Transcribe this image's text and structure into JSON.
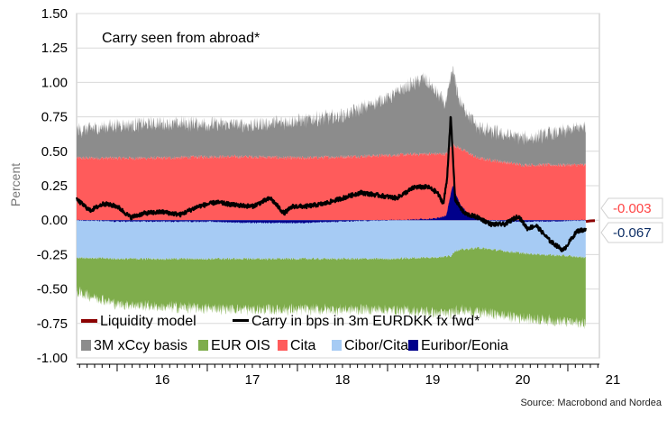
{
  "chart_data": {
    "type": "area",
    "title": "",
    "annotation": "Carry seen from abroad*",
    "xlabel": "",
    "ylabel": "Percent",
    "ylim": [
      -1.0,
      1.5
    ],
    "yticks": [
      "1.50",
      "1.25",
      "1.00",
      "0.75",
      "0.50",
      "0.25",
      "0.00",
      "-0.25",
      "-0.50",
      "-0.75",
      "-1.00"
    ],
    "xlim": [
      2015.55,
      2021.35
    ],
    "xticks": [
      "16",
      "17",
      "18",
      "19",
      "20",
      "21"
    ],
    "grid": true,
    "legend_placement": "bottom-left",
    "source": "Source: Macrobond and Nordea",
    "series": [
      {
        "name": "Liquidity model",
        "kind": "line",
        "color": "#8b0000",
        "x": [
          2021.2,
          2021.25,
          2021.3
        ],
        "y": [
          -0.01,
          -0.005,
          -0.003
        ]
      },
      {
        "name": "Carry in bps in 3m EURDKK fx fwd*",
        "kind": "line",
        "color": "#000000",
        "x": [
          2015.55,
          2015.7,
          2015.85,
          2016.0,
          2016.15,
          2016.3,
          2016.5,
          2016.7,
          2016.9,
          2017.1,
          2017.3,
          2017.5,
          2017.7,
          2017.85,
          2017.95,
          2018.1,
          2018.3,
          2018.5,
          2018.7,
          2018.9,
          2019.1,
          2019.3,
          2019.45,
          2019.55,
          2019.62,
          2019.66,
          2019.7,
          2019.75,
          2019.85,
          2020.0,
          2020.15,
          2020.3,
          2020.45,
          2020.55,
          2020.65,
          2020.8,
          2020.95,
          2021.1,
          2021.2
        ],
        "y": [
          0.15,
          0.07,
          0.12,
          0.1,
          0.02,
          0.05,
          0.06,
          0.04,
          0.1,
          0.13,
          0.11,
          0.1,
          0.16,
          0.05,
          0.1,
          0.1,
          0.12,
          0.16,
          0.2,
          0.18,
          0.16,
          0.24,
          0.24,
          0.2,
          0.12,
          0.3,
          0.76,
          0.15,
          0.05,
          0.02,
          -0.03,
          -0.03,
          0.03,
          -0.06,
          -0.04,
          -0.15,
          -0.22,
          -0.08,
          -0.067
        ]
      },
      {
        "name": "3M xCcy basis",
        "kind": "area",
        "color": "#8c8c8c",
        "x": [
          2015.55,
          2016.0,
          2016.5,
          2017.0,
          2017.5,
          2018.0,
          2018.5,
          2019.0,
          2019.4,
          2019.65,
          2019.72,
          2019.8,
          2020.0,
          2020.3,
          2020.6,
          2020.9,
          2021.2
        ],
        "y": [
          0.2,
          0.24,
          0.25,
          0.24,
          0.23,
          0.27,
          0.3,
          0.42,
          0.55,
          0.36,
          0.55,
          0.34,
          0.22,
          0.2,
          0.2,
          0.24,
          0.28
        ]
      },
      {
        "name": "EUR OIS",
        "kind": "area",
        "color": "#7fad4c",
        "x": [
          2015.55,
          2016.0,
          2016.5,
          2017.0,
          2017.5,
          2018.0,
          2018.5,
          2019.0,
          2019.5,
          2019.7,
          2020.0,
          2020.5,
          2021.0,
          2021.2
        ],
        "y": [
          -0.25,
          -0.33,
          -0.35,
          -0.36,
          -0.37,
          -0.37,
          -0.37,
          -0.37,
          -0.4,
          -0.42,
          -0.47,
          -0.47,
          -0.48,
          -0.48
        ]
      },
      {
        "name": "Cita",
        "kind": "area",
        "color": "#ff5b5b",
        "x": [
          2015.55,
          2016.0,
          2016.5,
          2017.0,
          2017.5,
          2018.0,
          2018.5,
          2019.0,
          2019.4,
          2019.65,
          2019.72,
          2020.0,
          2020.5,
          2021.0,
          2021.2
        ],
        "y": [
          0.45,
          0.45,
          0.45,
          0.46,
          0.46,
          0.45,
          0.46,
          0.47,
          0.48,
          0.48,
          0.55,
          0.45,
          0.4,
          0.4,
          0.4
        ]
      },
      {
        "name": "Cibor/Cita",
        "kind": "area",
        "color": "#a6cbf4",
        "x": [
          2015.55,
          2016.0,
          2016.5,
          2017.0,
          2017.5,
          2018.0,
          2018.5,
          2019.0,
          2019.5,
          2019.7,
          2019.75,
          2020.0,
          2020.5,
          2021.0,
          2021.2
        ],
        "y": [
          -0.27,
          -0.28,
          -0.28,
          -0.28,
          -0.28,
          -0.28,
          -0.28,
          -0.28,
          -0.27,
          -0.26,
          -0.22,
          -0.2,
          -0.24,
          -0.26,
          -0.27
        ]
      },
      {
        "name": "Euribor/Eonia",
        "kind": "area",
        "color": "#00008b",
        "x": [
          2015.55,
          2016.0,
          2016.5,
          2017.0,
          2017.5,
          2018.0,
          2018.5,
          2019.0,
          2019.5,
          2019.65,
          2019.72,
          2019.8,
          2019.9,
          2020.1,
          2020.4,
          2020.8,
          2021.2
        ],
        "y": [
          0.0,
          -0.01,
          -0.01,
          -0.01,
          -0.02,
          -0.02,
          -0.01,
          0.0,
          0.01,
          0.03,
          0.25,
          0.12,
          0.04,
          0.0,
          -0.01,
          -0.01,
          0.0
        ]
      }
    ],
    "callouts": [
      {
        "label": "-0.003",
        "value": -0.003,
        "color": "#ff4444"
      },
      {
        "label": "-0.067",
        "value": -0.067,
        "color": "#0b2c64"
      }
    ]
  }
}
